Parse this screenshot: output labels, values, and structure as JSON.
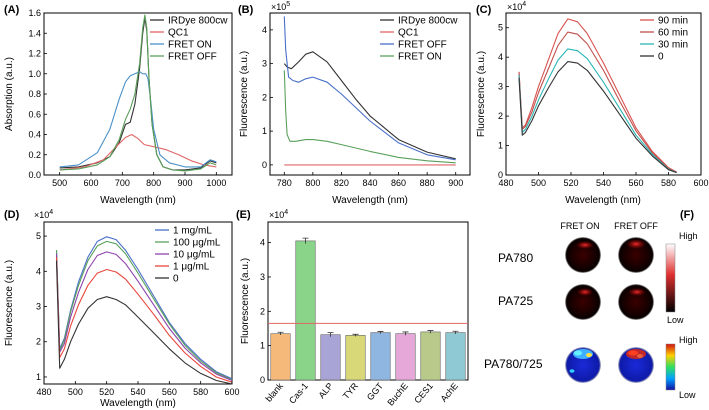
{
  "chart_data": [
    {
      "panel": "(A)",
      "type": "line",
      "xlabel": "Wavelength (nm)",
      "ylabel": "Absorption (a.u.)",
      "xlim": [
        450,
        1050
      ],
      "ylim": [
        0,
        1.6
      ],
      "xticks": [
        500,
        600,
        700,
        800,
        900,
        1000
      ],
      "yticks": [
        0.0,
        0.2,
        0.4,
        0.6,
        0.8,
        1.0,
        1.2,
        1.4,
        1.6
      ],
      "ytick_labels": [
        "0.0",
        "0.2",
        "0.4",
        "0.6",
        "0.8",
        "1.0",
        "1.2",
        "1.4",
        "1.6"
      ],
      "legend_position": "top-right",
      "series": [
        {
          "name": "IRDye 800cw",
          "color": "#333333",
          "x": [
            500,
            560,
            620,
            660,
            690,
            710,
            725,
            740,
            755,
            765,
            772,
            778,
            785,
            795,
            810,
            830,
            860,
            900,
            950,
            980,
            1000
          ],
          "y": [
            0.07,
            0.08,
            0.12,
            0.18,
            0.32,
            0.5,
            0.52,
            0.7,
            1.05,
            1.4,
            1.55,
            1.42,
            0.95,
            0.5,
            0.2,
            0.08,
            0.05,
            0.05,
            0.07,
            0.14,
            0.12
          ]
        },
        {
          "name": "QC1",
          "color": "#e06666",
          "x": [
            500,
            580,
            640,
            680,
            710,
            730,
            750,
            770,
            800,
            840,
            880,
            920,
            960,
            1000
          ],
          "y": [
            0.05,
            0.08,
            0.15,
            0.28,
            0.37,
            0.4,
            0.36,
            0.3,
            0.28,
            0.25,
            0.2,
            0.14,
            0.1,
            0.08
          ]
        },
        {
          "name": "FRET ON",
          "color": "#4a90c8",
          "x": [
            500,
            560,
            620,
            660,
            690,
            710,
            725,
            740,
            755,
            765,
            775,
            782,
            790,
            800,
            820,
            850,
            900,
            950,
            980,
            1000
          ],
          "y": [
            0.08,
            0.1,
            0.22,
            0.45,
            0.75,
            0.92,
            0.98,
            1.0,
            1.02,
            1.0,
            1.0,
            0.95,
            0.75,
            0.45,
            0.2,
            0.12,
            0.08,
            0.08,
            0.15,
            0.13
          ]
        },
        {
          "name": "FRET OFF",
          "color": "#5aa05a",
          "x": [
            500,
            560,
            620,
            660,
            690,
            710,
            725,
            740,
            755,
            765,
            772,
            778,
            785,
            795,
            810,
            830,
            860,
            900,
            950,
            980,
            1000
          ],
          "y": [
            0.05,
            0.06,
            0.1,
            0.18,
            0.35,
            0.55,
            0.65,
            0.8,
            1.1,
            1.45,
            1.58,
            1.45,
            0.95,
            0.5,
            0.2,
            0.08,
            0.05,
            0.04,
            0.06,
            0.12,
            0.1
          ]
        }
      ]
    },
    {
      "panel": "(B)",
      "type": "line",
      "xlabel": "Wavelength (nm)",
      "ylabel": "Fluorescence (a.u.)",
      "multiplier": "×10^5",
      "multiplier_base": "×10",
      "multiplier_exp": "5",
      "xlim": [
        770,
        910
      ],
      "ylim": [
        -0.3,
        4.5
      ],
      "xticks": [
        780,
        800,
        820,
        840,
        860,
        880,
        900
      ],
      "yticks": [
        0,
        1,
        2,
        3,
        4
      ],
      "ytick_labels": [
        "0",
        "1",
        "2",
        "3",
        "4"
      ],
      "legend_position": "top-right",
      "series": [
        {
          "name": "IRDye 800cw",
          "color": "#333333",
          "x": [
            780,
            782,
            785,
            790,
            795,
            800,
            810,
            820,
            830,
            840,
            860,
            880,
            900
          ],
          "y": [
            3.0,
            2.9,
            2.85,
            3.05,
            3.28,
            3.35,
            3.05,
            2.5,
            1.95,
            1.45,
            0.75,
            0.38,
            0.18
          ]
        },
        {
          "name": "QC1",
          "color": "#e06666",
          "x": [
            780,
            900
          ],
          "y": [
            0.0,
            0.0
          ]
        },
        {
          "name": "FRET OFF",
          "color": "#4a6fc8",
          "x": [
            780,
            781,
            783,
            786,
            790,
            795,
            800,
            810,
            820,
            840,
            860,
            880,
            900
          ],
          "y": [
            4.4,
            3.4,
            2.6,
            2.5,
            2.45,
            2.55,
            2.6,
            2.45,
            2.1,
            1.3,
            0.65,
            0.3,
            0.15
          ]
        },
        {
          "name": "FRET ON",
          "color": "#5aa05a",
          "x": [
            780,
            781,
            782,
            784,
            788,
            795,
            800,
            810,
            820,
            840,
            860,
            880,
            900
          ],
          "y": [
            2.8,
            1.6,
            0.9,
            0.7,
            0.7,
            0.75,
            0.75,
            0.7,
            0.6,
            0.4,
            0.22,
            0.12,
            0.06
          ]
        }
      ]
    },
    {
      "panel": "(C)",
      "type": "line",
      "xlabel": "Wavelength (nm)",
      "ylabel": "Fluorescence (a.u.)",
      "multiplier": "×10^4",
      "multiplier_base": "×10",
      "multiplier_exp": "4",
      "xlim": [
        480,
        600
      ],
      "ylim": [
        0,
        5.5
      ],
      "xticks": [
        480,
        500,
        520,
        540,
        560,
        580,
        600
      ],
      "yticks": [
        0,
        1,
        2,
        3,
        4,
        5
      ],
      "ytick_labels": [
        "0",
        "1",
        "2",
        "3",
        "4",
        "5"
      ],
      "legend_position": "top-right",
      "series": [
        {
          "name": "90 min",
          "color": "#d9534f",
          "x": [
            488,
            490,
            492,
            496,
            500,
            506,
            512,
            518,
            524,
            530,
            540,
            550,
            560,
            570,
            580,
            585
          ],
          "y": [
            3.5,
            1.6,
            1.7,
            2.3,
            3.0,
            3.9,
            4.8,
            5.3,
            5.2,
            4.8,
            3.8,
            2.7,
            1.6,
            0.8,
            0.25,
            0.1
          ]
        },
        {
          "name": "60 min",
          "color": "#c0504d",
          "x": [
            488,
            490,
            492,
            496,
            500,
            506,
            512,
            518,
            524,
            530,
            540,
            550,
            560,
            570,
            580,
            585
          ],
          "y": [
            3.5,
            1.55,
            1.65,
            2.15,
            2.8,
            3.6,
            4.4,
            4.85,
            4.78,
            4.45,
            3.55,
            2.5,
            1.5,
            0.75,
            0.22,
            0.1
          ]
        },
        {
          "name": "30 min",
          "color": "#2bb5b5",
          "x": [
            488,
            490,
            492,
            496,
            500,
            506,
            512,
            518,
            524,
            530,
            540,
            550,
            560,
            570,
            580,
            585
          ],
          "y": [
            3.4,
            1.45,
            1.55,
            2.0,
            2.55,
            3.25,
            3.9,
            4.28,
            4.22,
            3.95,
            3.15,
            2.25,
            1.35,
            0.7,
            0.2,
            0.08
          ]
        },
        {
          "name": "0",
          "color": "#333333",
          "x": [
            488,
            490,
            492,
            496,
            500,
            506,
            512,
            518,
            524,
            530,
            540,
            550,
            560,
            570,
            580,
            585
          ],
          "y": [
            3.3,
            1.35,
            1.45,
            1.85,
            2.35,
            2.95,
            3.5,
            3.85,
            3.8,
            3.55,
            2.85,
            2.05,
            1.25,
            0.65,
            0.18,
            0.08
          ]
        }
      ]
    },
    {
      "panel": "(D)",
      "type": "line",
      "xlabel": "Wavelength (nm)",
      "ylabel": "Fluorescence (a.u.)",
      "multiplier": "×10^4",
      "multiplier_base": "×10",
      "multiplier_exp": "4",
      "xlim": [
        480,
        600
      ],
      "ylim": [
        0.8,
        5.4
      ],
      "xticks": [
        480,
        500,
        520,
        540,
        560,
        580,
        600
      ],
      "yticks": [
        1,
        2,
        3,
        4,
        5
      ],
      "ytick_labels": [
        "1",
        "2",
        "3",
        "4",
        "5"
      ],
      "legend_position": "top-right",
      "series": [
        {
          "name": "1 mg/mL",
          "color": "#4a6fc8",
          "x": [
            488,
            490,
            493,
            497,
            502,
            508,
            514,
            520,
            526,
            532,
            540,
            550,
            560,
            570,
            580,
            590,
            600
          ],
          "y": [
            4.6,
            1.8,
            2.1,
            2.9,
            3.7,
            4.4,
            4.85,
            4.98,
            4.9,
            4.6,
            4.05,
            3.3,
            2.55,
            1.95,
            1.5,
            1.15,
            0.95
          ]
        },
        {
          "name": "100 μg/mL",
          "color": "#5aa05a",
          "x": [
            488,
            490,
            493,
            497,
            502,
            508,
            514,
            520,
            526,
            532,
            540,
            550,
            560,
            570,
            580,
            590,
            600
          ],
          "y": [
            4.6,
            1.75,
            2.05,
            2.85,
            3.6,
            4.3,
            4.72,
            4.85,
            4.78,
            4.5,
            3.95,
            3.22,
            2.5,
            1.9,
            1.45,
            1.12,
            0.92
          ]
        },
        {
          "name": "10 μg/mL",
          "color": "#8e44ad",
          "x": [
            488,
            490,
            493,
            497,
            502,
            508,
            514,
            520,
            526,
            532,
            540,
            550,
            560,
            570,
            580,
            590,
            600
          ],
          "y": [
            4.5,
            1.7,
            1.95,
            2.7,
            3.4,
            4.05,
            4.45,
            4.55,
            4.48,
            4.22,
            3.72,
            3.05,
            2.38,
            1.82,
            1.4,
            1.08,
            0.9
          ]
        },
        {
          "name": "1 μg/mL",
          "color": "#e8463c",
          "x": [
            488,
            490,
            493,
            497,
            502,
            508,
            514,
            520,
            526,
            532,
            540,
            550,
            560,
            570,
            580,
            590,
            600
          ],
          "y": [
            4.4,
            1.55,
            1.8,
            2.45,
            3.05,
            3.6,
            3.95,
            4.05,
            3.98,
            3.78,
            3.35,
            2.78,
            2.18,
            1.68,
            1.3,
            1.0,
            0.85
          ]
        },
        {
          "name": "0",
          "color": "#333333",
          "x": [
            488,
            490,
            493,
            497,
            502,
            508,
            514,
            520,
            526,
            532,
            540,
            550,
            560,
            570,
            580,
            590,
            600
          ],
          "y": [
            4.3,
            1.25,
            1.5,
            2.0,
            2.5,
            2.95,
            3.2,
            3.28,
            3.2,
            3.05,
            2.7,
            2.25,
            1.8,
            1.4,
            1.1,
            0.9,
            0.8
          ]
        }
      ]
    },
    {
      "panel": "(E)",
      "type": "bar",
      "ylabel": "Fluorescence (a.u.)",
      "multiplier": "×10^4",
      "multiplier_base": "×10",
      "multiplier_exp": "4",
      "ylim": [
        0,
        4.6
      ],
      "yticks": [
        0,
        1,
        2,
        3,
        4
      ],
      "ytick_labels": [
        "0",
        "1",
        "2",
        "3",
        "4"
      ],
      "categories": [
        "blank",
        "Cas-1",
        "ALP",
        "TYR",
        "GGT",
        "BuchE",
        "CES1",
        "AchE"
      ],
      "values": [
        1.35,
        4.05,
        1.32,
        1.3,
        1.38,
        1.35,
        1.4,
        1.38
      ],
      "errors": [
        0.04,
        0.08,
        0.06,
        0.03,
        0.03,
        0.05,
        0.04,
        0.04
      ],
      "colors": [
        "#f5b97a",
        "#8ad48a",
        "#a9a4d6",
        "#d8d878",
        "#8fb6e0",
        "#e6a8d8",
        "#b8c98a",
        "#8fc9d4"
      ],
      "reference_line": 1.65,
      "reference_color": "#e06666"
    }
  ],
  "panelF": {
    "label": "(F)",
    "col_fret_on": "FRET ON",
    "col_fret_off": "FRET OFF",
    "rows": [
      "PA780",
      "PA725",
      "PA780/725"
    ],
    "scale1_high": "High",
    "scale1_low": "Low",
    "scale2_high": "High",
    "scale2_low": "Low"
  }
}
